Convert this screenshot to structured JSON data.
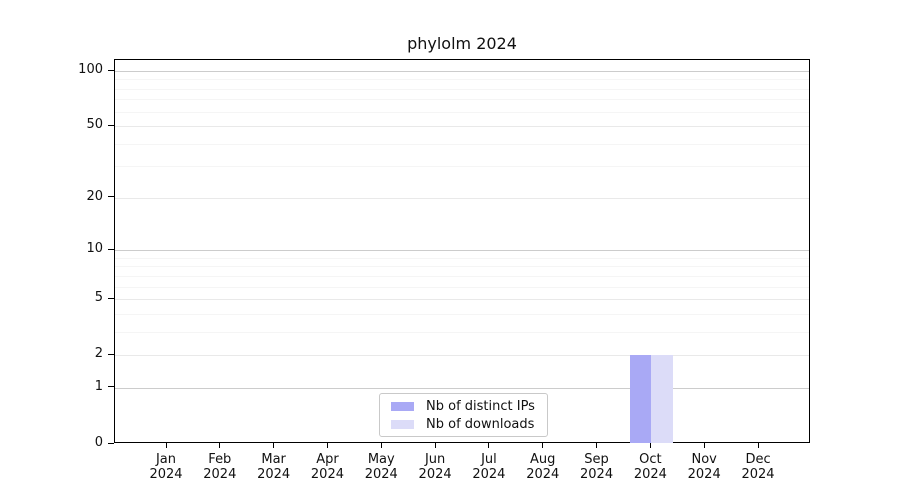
{
  "title": "phylolm 2024",
  "chart_data": {
    "type": "bar",
    "title": "phylolm 2024",
    "x_categories": [
      "Jan",
      "Feb",
      "Mar",
      "Apr",
      "May",
      "Jun",
      "Jul",
      "Aug",
      "Sep",
      "Oct",
      "Nov",
      "Dec"
    ],
    "x_year": "2024",
    "series": [
      {
        "name": "Nb of distinct IPs",
        "color": "#a9a9f5",
        "values": [
          0,
          0,
          0,
          0,
          0,
          0,
          0,
          0,
          0,
          2,
          0,
          0
        ]
      },
      {
        "name": "Nb of downloads",
        "color": "#dcdcf8",
        "values": [
          0,
          0,
          0,
          0,
          0,
          0,
          0,
          0,
          0,
          2,
          0,
          0
        ]
      }
    ],
    "yscale": "log1p",
    "ylim": [
      0,
      115
    ],
    "y_ticks": [
      0,
      1,
      2,
      5,
      10,
      20,
      50,
      100
    ],
    "y_tick_labels": [
      "0",
      "1",
      "2",
      "5",
      "10",
      "20",
      "50",
      "100"
    ],
    "y_minor_gridlines": [
      3,
      4,
      6,
      7,
      8,
      9,
      30,
      40,
      60,
      70,
      80,
      90
    ],
    "grid": "horizontal",
    "legend_position": "lower center"
  },
  "colors": {
    "background": "#ffffff",
    "axis": "#000000",
    "grid_decade": "#cccccc",
    "grid_major": "#e9e9e9",
    "grid_minor": "#f5f5f5",
    "text": "#111111",
    "legend_border": "#c9c9c9"
  }
}
